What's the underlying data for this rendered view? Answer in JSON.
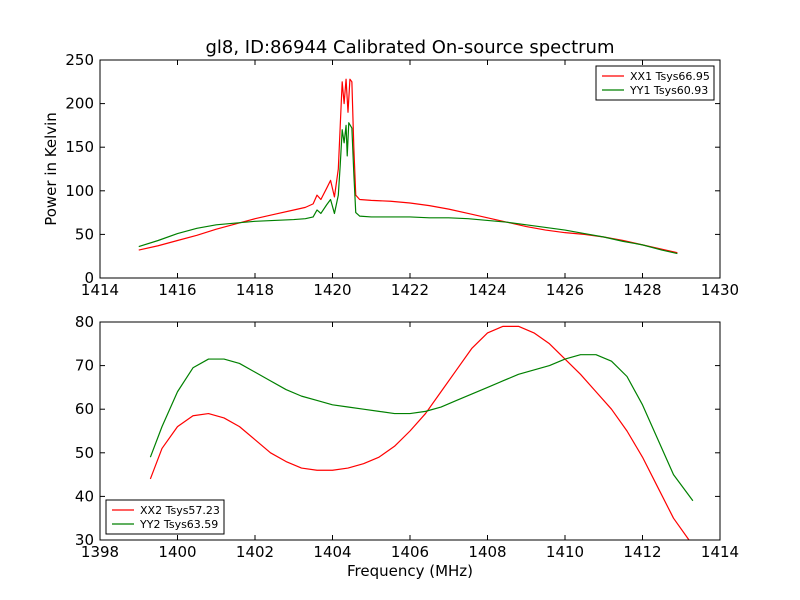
{
  "chart_data": [
    {
      "type": "line",
      "title": "gl8, ID:86944 Calibrated On-source spectrum",
      "xlabel": "",
      "ylabel": "Power in Kelvin",
      "xlim": [
        1414,
        1430
      ],
      "ylim": [
        0,
        250
      ],
      "xticks": [
        1414,
        1416,
        1418,
        1420,
        1422,
        1424,
        1426,
        1428,
        1430
      ],
      "yticks": [
        0,
        50,
        100,
        150,
        200,
        250
      ],
      "grid": false,
      "legend_position": "top-right",
      "series": [
        {
          "name": "XX1 Tsys66.95",
          "color": "#ff0000",
          "points": [
            [
              1415.0,
              32
            ],
            [
              1415.5,
              37
            ],
            [
              1416.0,
              43
            ],
            [
              1416.5,
              49
            ],
            [
              1417.0,
              56
            ],
            [
              1417.5,
              62
            ],
            [
              1418.0,
              68
            ],
            [
              1418.5,
              73
            ],
            [
              1419.0,
              78
            ],
            [
              1419.3,
              81
            ],
            [
              1419.5,
              85
            ],
            [
              1419.6,
              95
            ],
            [
              1419.7,
              90
            ],
            [
              1419.85,
              103
            ],
            [
              1419.95,
              112
            ],
            [
              1420.05,
              93
            ],
            [
              1420.15,
              125
            ],
            [
              1420.2,
              175
            ],
            [
              1420.25,
              225
            ],
            [
              1420.3,
              200
            ],
            [
              1420.35,
              228
            ],
            [
              1420.4,
              190
            ],
            [
              1420.45,
              228
            ],
            [
              1420.5,
              225
            ],
            [
              1420.55,
              150
            ],
            [
              1420.6,
              95
            ],
            [
              1420.7,
              90
            ],
            [
              1421.0,
              89
            ],
            [
              1421.5,
              88
            ],
            [
              1422.0,
              86
            ],
            [
              1422.5,
              83
            ],
            [
              1423.0,
              79
            ],
            [
              1423.5,
              74
            ],
            [
              1424.0,
              69
            ],
            [
              1424.5,
              64
            ],
            [
              1425.0,
              59
            ],
            [
              1425.5,
              55
            ],
            [
              1426.0,
              52
            ],
            [
              1426.5,
              50
            ],
            [
              1427.0,
              47
            ],
            [
              1427.5,
              43
            ],
            [
              1428.0,
              38
            ],
            [
              1428.5,
              33
            ],
            [
              1428.9,
              29
            ]
          ]
        },
        {
          "name": "YY1 Tsys60.93",
          "color": "#008000",
          "points": [
            [
              1415.0,
              36
            ],
            [
              1415.5,
              43
            ],
            [
              1416.0,
              51
            ],
            [
              1416.5,
              57
            ],
            [
              1417.0,
              61
            ],
            [
              1417.5,
              63
            ],
            [
              1418.0,
              65
            ],
            [
              1418.5,
              66
            ],
            [
              1419.0,
              67
            ],
            [
              1419.3,
              68
            ],
            [
              1419.5,
              70
            ],
            [
              1419.6,
              78
            ],
            [
              1419.7,
              74
            ],
            [
              1419.85,
              84
            ],
            [
              1419.95,
              90
            ],
            [
              1420.05,
              74
            ],
            [
              1420.15,
              95
            ],
            [
              1420.2,
              130
            ],
            [
              1420.25,
              170
            ],
            [
              1420.3,
              155
            ],
            [
              1420.35,
              175
            ],
            [
              1420.38,
              140
            ],
            [
              1420.42,
              178
            ],
            [
              1420.5,
              172
            ],
            [
              1420.55,
              120
            ],
            [
              1420.6,
              75
            ],
            [
              1420.7,
              71
            ],
            [
              1421.0,
              70
            ],
            [
              1421.5,
              70
            ],
            [
              1422.0,
              70
            ],
            [
              1422.5,
              69
            ],
            [
              1423.0,
              69
            ],
            [
              1423.5,
              68
            ],
            [
              1424.0,
              66
            ],
            [
              1424.5,
              64
            ],
            [
              1425.0,
              61
            ],
            [
              1425.5,
              58
            ],
            [
              1426.0,
              55
            ],
            [
              1426.5,
              51
            ],
            [
              1427.0,
              47
            ],
            [
              1427.5,
              42
            ],
            [
              1428.0,
              38
            ],
            [
              1428.5,
              32
            ],
            [
              1428.9,
              28
            ]
          ]
        }
      ]
    },
    {
      "type": "line",
      "title": "",
      "xlabel": "Frequency (MHz)",
      "ylabel": "",
      "xlim": [
        1398,
        1414
      ],
      "ylim": [
        30,
        80
      ],
      "xticks": [
        1398,
        1400,
        1402,
        1404,
        1406,
        1408,
        1410,
        1412,
        1414
      ],
      "yticks": [
        30,
        40,
        50,
        60,
        70,
        80
      ],
      "grid": false,
      "legend_position": "bottom-left",
      "series": [
        {
          "name": "XX2 Tsys57.23",
          "color": "#ff0000",
          "points": [
            [
              1399.3,
              44
            ],
            [
              1399.6,
              51
            ],
            [
              1400.0,
              56
            ],
            [
              1400.4,
              58.5
            ],
            [
              1400.8,
              59
            ],
            [
              1401.2,
              58
            ],
            [
              1401.6,
              56
            ],
            [
              1402.0,
              53
            ],
            [
              1402.4,
              50
            ],
            [
              1402.8,
              48
            ],
            [
              1403.2,
              46.5
            ],
            [
              1403.6,
              46
            ],
            [
              1404.0,
              46
            ],
            [
              1404.4,
              46.5
            ],
            [
              1404.8,
              47.5
            ],
            [
              1405.2,
              49
            ],
            [
              1405.6,
              51.5
            ],
            [
              1406.0,
              55
            ],
            [
              1406.4,
              59
            ],
            [
              1406.8,
              64
            ],
            [
              1407.2,
              69
            ],
            [
              1407.6,
              74
            ],
            [
              1408.0,
              77.5
            ],
            [
              1408.4,
              79
            ],
            [
              1408.8,
              79
            ],
            [
              1409.2,
              77.5
            ],
            [
              1409.6,
              75
            ],
            [
              1410.0,
              71.5
            ],
            [
              1410.4,
              68
            ],
            [
              1410.8,
              64
            ],
            [
              1411.2,
              60
            ],
            [
              1411.6,
              55
            ],
            [
              1412.0,
              49
            ],
            [
              1412.4,
              42
            ],
            [
              1412.8,
              35
            ],
            [
              1413.2,
              30
            ]
          ]
        },
        {
          "name": "YY2 Tsys63.59",
          "color": "#008000",
          "points": [
            [
              1399.3,
              49
            ],
            [
              1399.6,
              56
            ],
            [
              1400.0,
              64
            ],
            [
              1400.4,
              69.5
            ],
            [
              1400.8,
              71.5
            ],
            [
              1401.2,
              71.5
            ],
            [
              1401.6,
              70.5
            ],
            [
              1402.0,
              68.5
            ],
            [
              1402.4,
              66.5
            ],
            [
              1402.8,
              64.5
            ],
            [
              1403.2,
              63
            ],
            [
              1403.6,
              62
            ],
            [
              1404.0,
              61
            ],
            [
              1404.4,
              60.5
            ],
            [
              1404.8,
              60
            ],
            [
              1405.2,
              59.5
            ],
            [
              1405.6,
              59
            ],
            [
              1406.0,
              59
            ],
            [
              1406.4,
              59.5
            ],
            [
              1406.8,
              60.5
            ],
            [
              1407.2,
              62
            ],
            [
              1407.6,
              63.5
            ],
            [
              1408.0,
              65
            ],
            [
              1408.4,
              66.5
            ],
            [
              1408.8,
              68
            ],
            [
              1409.2,
              69
            ],
            [
              1409.6,
              70
            ],
            [
              1410.0,
              71.5
            ],
            [
              1410.4,
              72.5
            ],
            [
              1410.8,
              72.5
            ],
            [
              1411.2,
              71
            ],
            [
              1411.6,
              67.5
            ],
            [
              1412.0,
              61
            ],
            [
              1412.4,
              53
            ],
            [
              1412.8,
              45
            ],
            [
              1413.3,
              39
            ]
          ]
        }
      ]
    }
  ]
}
